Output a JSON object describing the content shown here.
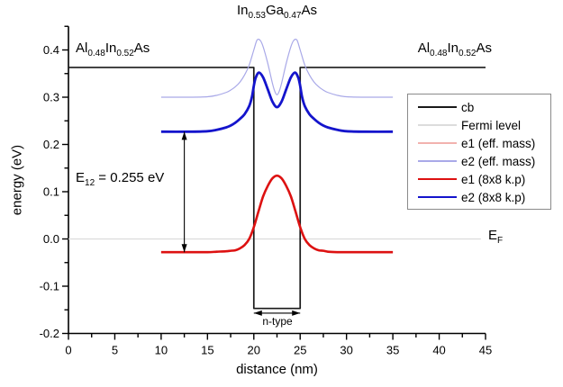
{
  "chart_data": {
    "type": "line",
    "title": [
      [
        "In",
        "0.53"
      ],
      [
        "Ga",
        "0.47"
      ],
      [
        "As",
        ""
      ]
    ],
    "x": {
      "label": "distance (nm)",
      "min": 0,
      "max": 45,
      "major_ticks": [
        0,
        5,
        10,
        15,
        20,
        25,
        30,
        35,
        40,
        45
      ],
      "minor_step": 2.5
    },
    "y": {
      "label": "energy (eV)",
      "min": -0.2,
      "max": 0.45,
      "major_ticks": [
        -0.2,
        -0.1,
        0.0,
        0.1,
        0.2,
        0.3,
        0.4
      ],
      "minor_step": 0.05
    },
    "grid": false,
    "series": [
      {
        "name": "Fermi level",
        "color": "#dcdcdc",
        "width": 1.2,
        "smooth": false,
        "points": [
          [
            0,
            0
          ],
          [
            44.5,
            0
          ]
        ]
      },
      {
        "name": "cb",
        "color": "#1a1a1a",
        "width": 1.7,
        "smooth": false,
        "points": [
          [
            0,
            0.363
          ],
          [
            20,
            0.363
          ],
          [
            20,
            -0.147
          ],
          [
            25,
            -0.147
          ],
          [
            25,
            0.363
          ],
          [
            45,
            0.363
          ]
        ]
      },
      {
        "name": "e1 (eff. mass)",
        "color": "#f2b2ae",
        "width": 1.4,
        "smooth": true,
        "points": [
          [
            10,
            -0.028
          ],
          [
            13,
            -0.028
          ],
          [
            15,
            -0.028
          ],
          [
            16,
            -0.027
          ],
          [
            17,
            -0.026
          ],
          [
            17.5,
            -0.025
          ],
          [
            18,
            -0.024
          ],
          [
            18.5,
            -0.02
          ],
          [
            19,
            -0.013
          ],
          [
            19.5,
            0.0
          ],
          [
            20,
            0.025
          ],
          [
            20.5,
            0.058
          ],
          [
            21,
            0.09
          ],
          [
            21.5,
            0.112
          ],
          [
            22,
            0.128
          ],
          [
            22.5,
            0.134
          ],
          [
            23,
            0.128
          ],
          [
            23.5,
            0.112
          ],
          [
            24,
            0.09
          ],
          [
            24.5,
            0.058
          ],
          [
            25,
            0.025
          ],
          [
            25.5,
            0.0
          ],
          [
            26,
            -0.013
          ],
          [
            26.5,
            -0.02
          ],
          [
            27,
            -0.024
          ],
          [
            27.5,
            -0.025
          ],
          [
            28,
            -0.027
          ],
          [
            29,
            -0.028
          ],
          [
            30,
            -0.028
          ],
          [
            32,
            -0.028
          ],
          [
            35,
            -0.028
          ]
        ]
      },
      {
        "name": "e2 (eff. mass)",
        "color": "#a9a9e8",
        "width": 1.2,
        "smooth": true,
        "points": [
          [
            10,
            0.3
          ],
          [
            13,
            0.3
          ],
          [
            15,
            0.301
          ],
          [
            16,
            0.304
          ],
          [
            17,
            0.31
          ],
          [
            17.5,
            0.315
          ],
          [
            18,
            0.322
          ],
          [
            18.5,
            0.332
          ],
          [
            19,
            0.347
          ],
          [
            19.5,
            0.368
          ],
          [
            20,
            0.4
          ],
          [
            20.35,
            0.421
          ],
          [
            20.7,
            0.42
          ],
          [
            21,
            0.407
          ],
          [
            21.5,
            0.372
          ],
          [
            22,
            0.33
          ],
          [
            22.25,
            0.313
          ],
          [
            22.5,
            0.305
          ],
          [
            22.75,
            0.313
          ],
          [
            23,
            0.33
          ],
          [
            23.5,
            0.372
          ],
          [
            24,
            0.407
          ],
          [
            24.3,
            0.42
          ],
          [
            24.65,
            0.421
          ],
          [
            25,
            0.4
          ],
          [
            25.5,
            0.368
          ],
          [
            26,
            0.347
          ],
          [
            26.5,
            0.332
          ],
          [
            27,
            0.322
          ],
          [
            27.5,
            0.315
          ],
          [
            28,
            0.31
          ],
          [
            29,
            0.304
          ],
          [
            30,
            0.301
          ],
          [
            32,
            0.3
          ],
          [
            35,
            0.3
          ]
        ]
      },
      {
        "name": "e1 (8x8 k.p)",
        "color": "#dd1111",
        "width": 2.6,
        "smooth": true,
        "points": [
          [
            10,
            -0.028
          ],
          [
            13,
            -0.028
          ],
          [
            15,
            -0.028
          ],
          [
            16,
            -0.027
          ],
          [
            17,
            -0.026
          ],
          [
            17.5,
            -0.025
          ],
          [
            18,
            -0.024
          ],
          [
            18.5,
            -0.02
          ],
          [
            19,
            -0.013
          ],
          [
            19.5,
            0.0
          ],
          [
            20,
            0.025
          ],
          [
            20.5,
            0.058
          ],
          [
            21,
            0.09
          ],
          [
            21.5,
            0.112
          ],
          [
            22,
            0.128
          ],
          [
            22.5,
            0.134
          ],
          [
            23,
            0.128
          ],
          [
            23.5,
            0.112
          ],
          [
            24,
            0.09
          ],
          [
            24.5,
            0.058
          ],
          [
            25,
            0.025
          ],
          [
            25.5,
            0.0
          ],
          [
            26,
            -0.013
          ],
          [
            26.5,
            -0.02
          ],
          [
            27,
            -0.024
          ],
          [
            27.5,
            -0.025
          ],
          [
            28,
            -0.027
          ],
          [
            29,
            -0.028
          ],
          [
            30,
            -0.028
          ],
          [
            32,
            -0.028
          ],
          [
            35,
            -0.028
          ]
        ]
      },
      {
        "name": "e2 (8x8 k.p)",
        "color": "#1414cc",
        "width": 2.8,
        "smooth": true,
        "points": [
          [
            10,
            0.227
          ],
          [
            13,
            0.227
          ],
          [
            15,
            0.228
          ],
          [
            16,
            0.231
          ],
          [
            17,
            0.236
          ],
          [
            17.5,
            0.24
          ],
          [
            18,
            0.246
          ],
          [
            18.5,
            0.254
          ],
          [
            19,
            0.264
          ],
          [
            19.5,
            0.281
          ],
          [
            19.8,
            0.301
          ],
          [
            20,
            0.324
          ],
          [
            20.2,
            0.341
          ],
          [
            20.55,
            0.352
          ],
          [
            21,
            0.342
          ],
          [
            21.5,
            0.317
          ],
          [
            22,
            0.291
          ],
          [
            22.5,
            0.279
          ],
          [
            23,
            0.291
          ],
          [
            23.5,
            0.317
          ],
          [
            24,
            0.342
          ],
          [
            24.45,
            0.352
          ],
          [
            24.8,
            0.341
          ],
          [
            25,
            0.324
          ],
          [
            25.2,
            0.301
          ],
          [
            25.5,
            0.281
          ],
          [
            26,
            0.264
          ],
          [
            26.5,
            0.254
          ],
          [
            27,
            0.246
          ],
          [
            27.5,
            0.24
          ],
          [
            28,
            0.236
          ],
          [
            29,
            0.231
          ],
          [
            30,
            0.228
          ],
          [
            32,
            0.227
          ],
          [
            35,
            0.227
          ]
        ]
      }
    ],
    "legend": {
      "position": "right",
      "items": [
        {
          "label": "cb",
          "color": "#1a1a1a",
          "width": 1.5
        },
        {
          "label": "Fermi level",
          "color": "#dcdcdc",
          "width": 1.2
        },
        {
          "label": "e1 (eff. mass)",
          "color": "#f2b2ae",
          "width": 1.2
        },
        {
          "label": "e2 (eff. mass)",
          "color": "#a9a9e8",
          "width": 1.2
        },
        {
          "label": "e1 (8x8 k.p)",
          "color": "#dd1111",
          "width": 2.6
        },
        {
          "label": "e2 (8x8 k.p)",
          "color": "#1414cc",
          "width": 2.8
        }
      ]
    },
    "annotations": {
      "e12_arrow": {
        "x_nm": 12.5,
        "e_top": 0.227,
        "e_bottom": -0.028
      },
      "e12_label": [
        [
          "E",
          "12"
        ],
        [
          " = 0.255 eV",
          ""
        ]
      ],
      "ntype_arrow": {
        "x1_nm": 20,
        "x2_nm": 25,
        "e": -0.157
      },
      "ntype_label": "n-type",
      "ef_label": [
        [
          "E",
          "F"
        ]
      ],
      "left_material": [
        [
          "Al",
          "0.48"
        ],
        [
          "In",
          "0.52"
        ],
        [
          "As",
          ""
        ]
      ],
      "right_material": [
        [
          "Al",
          "0.48"
        ],
        [
          "In",
          "0.52"
        ],
        [
          "As",
          ""
        ]
      ]
    }
  }
}
